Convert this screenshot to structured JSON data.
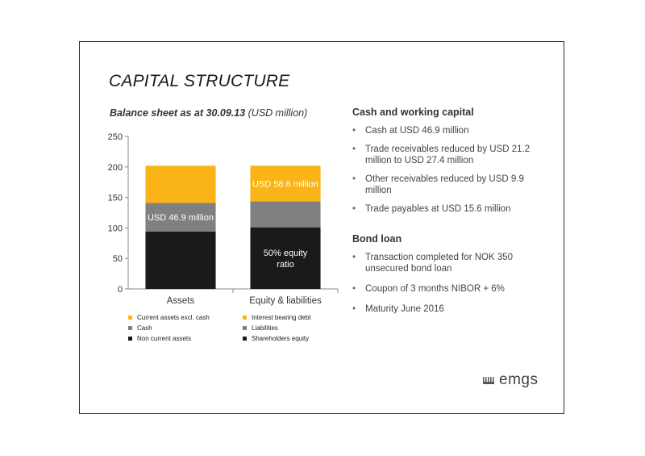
{
  "slide": {
    "title": "CAPITAL STRUCTURE",
    "subtitle_bold": "Balance sheet as at 30.09.13",
    "subtitle_rest": " (USD million)",
    "logo_text": "emgs"
  },
  "chart_data": {
    "type": "bar",
    "stacked": true,
    "categories": [
      "Assets",
      "Equity & liabilities"
    ],
    "ylim": [
      0,
      250
    ],
    "yticks": [
      0,
      50,
      100,
      150,
      200,
      250
    ],
    "grid": false,
    "series": [
      {
        "name": "Non current assets",
        "stack": "Assets",
        "values": [
          94,
          0
        ],
        "color": "#1a1a1a"
      },
      {
        "name": "Cash",
        "stack": "Assets",
        "values": [
          46.9,
          0
        ],
        "color": "#808080"
      },
      {
        "name": "Current assets excl. cash",
        "stack": "Assets",
        "values": [
          61,
          0
        ],
        "color": "#fab417"
      },
      {
        "name": "Shareholders equity",
        "stack": "Equity & liabilities",
        "values": [
          0,
          101
        ],
        "color": "#1a1a1a"
      },
      {
        "name": "Liabilities",
        "stack": "Equity & liabilities",
        "values": [
          0,
          42.4
        ],
        "color": "#808080"
      },
      {
        "name": "Interest bearing debt",
        "stack": "Equity & liabilities",
        "values": [
          0,
          58.6
        ],
        "color": "#fab417"
      }
    ],
    "annotations": [
      {
        "category": 0,
        "series": 1,
        "text": "USD 46.9 million",
        "color": "#ffffff"
      },
      {
        "category": 1,
        "series": 5,
        "text": "USD 58.6 million",
        "color": "#ffffff"
      },
      {
        "category": 1,
        "series": 3,
        "lines": [
          "50% equity",
          "ratio"
        ],
        "color": "#ffffff"
      }
    ],
    "legend": {
      "placement": "bottom",
      "items": [
        {
          "label": "Current assets excl. cash",
          "color": "#fab417"
        },
        {
          "label": "Interest bearing debt",
          "color": "#fab417"
        },
        {
          "label": "Cash",
          "color": "#808080"
        },
        {
          "label": "Liabilities",
          "color": "#808080"
        },
        {
          "label": "Non current assets",
          "color": "#1a1a1a"
        },
        {
          "label": "Shareholders equity",
          "color": "#1a1a1a"
        }
      ]
    }
  },
  "right_panel": {
    "sections": [
      {
        "heading": "Cash and working capital",
        "bullets": [
          [
            "Cash at USD 46.9 million"
          ],
          [
            "Trade receivables reduced by USD 21.2",
            "million to USD 27.4 million"
          ],
          [
            "Other receivables reduced by USD 9.9",
            "million"
          ],
          [
            "Trade payables at USD 15.6 million"
          ]
        ]
      },
      {
        "heading": "Bond loan",
        "bullets": [
          [
            "Transaction completed for NOK 350",
            "unsecured bond loan"
          ],
          [
            "Coupon of 3 months NIBOR + 6%"
          ],
          [
            "Maturity June 2016"
          ]
        ]
      }
    ]
  }
}
